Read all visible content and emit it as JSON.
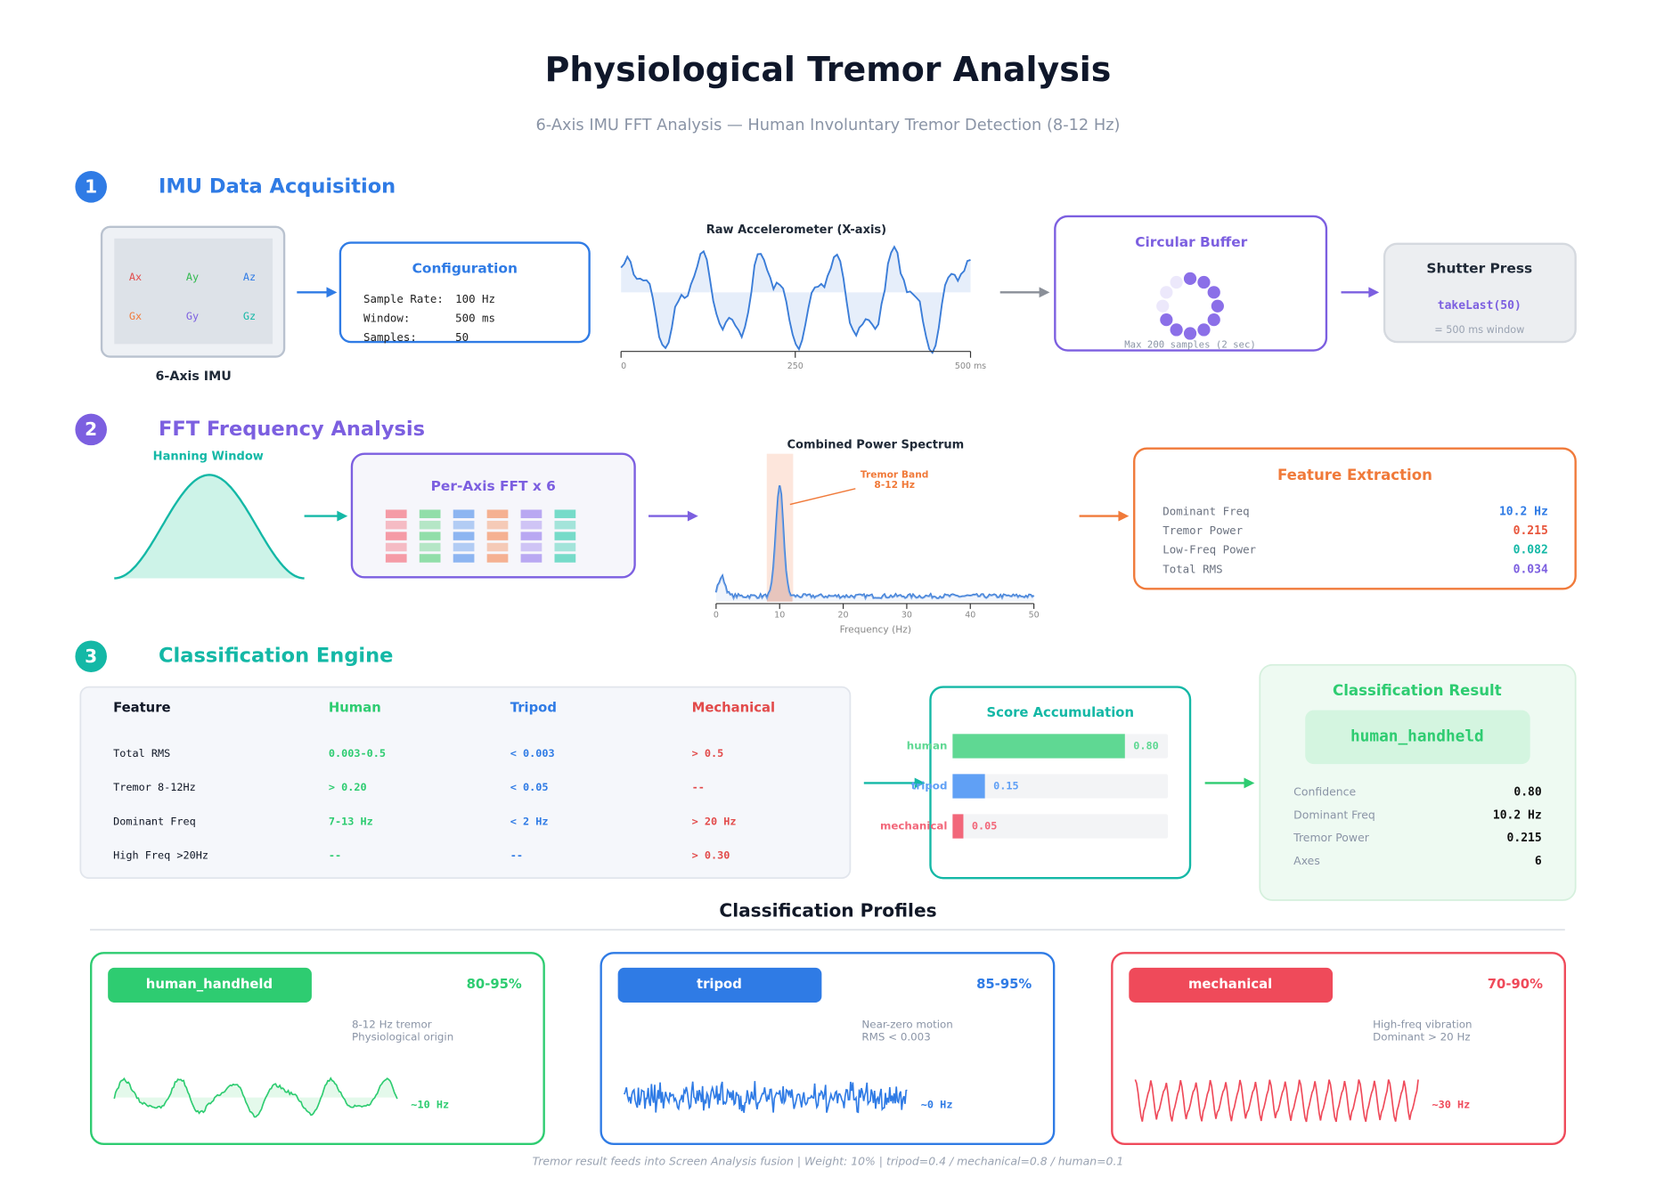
{
  "header": {
    "title": "Physiological Tremor Analysis",
    "subtitle": "6-Axis IMU FFT Analysis  —  Human Involuntary Tremor Detection (8-12 Hz)"
  },
  "sections": [
    {
      "number": "1",
      "title": "IMU Data Acquisition"
    },
    {
      "number": "2",
      "title": "FFT Frequency Analysis"
    },
    {
      "number": "3",
      "title": "Classification Engine"
    }
  ],
  "imu": {
    "axes": [
      "Ax",
      "Ay",
      "Az",
      "Gx",
      "Gy",
      "Gz"
    ],
    "label": "6-Axis IMU"
  },
  "configuration": {
    "title": "Configuration",
    "rows": [
      [
        "Sample Rate:",
        "100 Hz"
      ],
      [
        "Window:",
        "500 ms"
      ],
      [
        "Samples:",
        "50"
      ]
    ]
  },
  "raw_signal": {
    "title": "Raw Accelerometer (X-axis)",
    "ticks": [
      "0",
      "250",
      "500 ms"
    ]
  },
  "buffer": {
    "title": "Circular Buffer",
    "note": "Max 200 samples (2 sec)"
  },
  "shutter": {
    "title": "Shutter Press",
    "call": "takeLast(50)",
    "note": "= 500 ms window"
  },
  "hanning": {
    "title": "Hanning Window"
  },
  "fft": {
    "title": "Per-Axis FFT  x  6"
  },
  "spectrum": {
    "title": "Combined Power Spectrum",
    "band_label": [
      "Tremor Band",
      "8-12 Hz"
    ],
    "ticks": [
      "0",
      "10",
      "20",
      "30",
      "40",
      "50"
    ],
    "x_label": "Frequency (Hz)"
  },
  "features": {
    "title": "Feature Extraction",
    "rows": [
      [
        "Dominant Freq",
        "10.2 Hz"
      ],
      [
        "Tremor Power",
        "0.215"
      ],
      [
        "Low-Freq Power",
        "0.082"
      ],
      [
        "Total RMS",
        "0.034"
      ]
    ]
  },
  "criteria_table": {
    "header": [
      "Feature",
      "Human",
      "Tripod",
      "Mechanical"
    ],
    "rows": [
      [
        "Total RMS",
        "0.003-0.5",
        "< 0.003",
        "> 0.5"
      ],
      [
        "Tremor 8-12Hz",
        "> 0.20",
        "< 0.05",
        "--"
      ],
      [
        "Dominant Freq",
        "7-13 Hz",
        "< 2 Hz",
        "> 20 Hz"
      ],
      [
        "High Freq >20Hz",
        "--",
        "--",
        "> 0.30"
      ]
    ]
  },
  "scores": {
    "title": "Score Accumulation",
    "categories": [
      "human",
      "tripod",
      "mechanical"
    ],
    "values": [
      0.8,
      0.15,
      0.05
    ],
    "value_labels": [
      "0.80",
      "0.15",
      "0.05"
    ],
    "colors": [
      "#5fd893",
      "#60a0f5",
      "#f2677a"
    ]
  },
  "result": {
    "title": "Classification Result",
    "value": "human_handheld",
    "rows": [
      [
        "Confidence",
        "0.80"
      ],
      [
        "Dominant Freq",
        "10.2 Hz"
      ],
      [
        "Tremor Power",
        "0.215"
      ],
      [
        "Axes",
        "6"
      ]
    ]
  },
  "profiles": {
    "title": "Classification Profiles",
    "items": [
      {
        "name": "human_handheld",
        "range": "80-95%",
        "description": [
          "8-12 Hz tremor",
          "Physiological origin"
        ],
        "frequency": "~10 Hz"
      },
      {
        "name": "tripod",
        "range": "85-95%",
        "description": [
          "Near-zero motion",
          "RMS < 0.003"
        ],
        "frequency": "~0 Hz"
      },
      {
        "name": "mechanical",
        "range": "70-90%",
        "description": [
          "High-freq vibration",
          "Dominant > 20 Hz"
        ],
        "frequency": "~30 Hz"
      }
    ]
  },
  "footer": "Tremor result feeds into Screen Analysis fusion  |  Weight: 10%  |  tripod=0.4  /  mechanical=0.8  /  human=0.1"
}
